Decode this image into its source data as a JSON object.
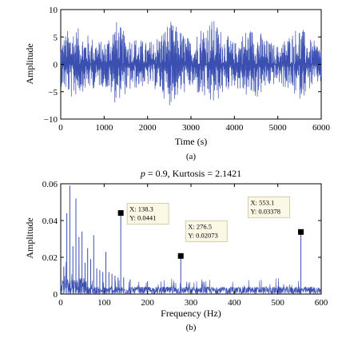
{
  "chart_data": [
    {
      "type": "line",
      "title": "",
      "xlabel": "Time (s)",
      "ylabel": "Amplitude",
      "caption": "(a)",
      "xlim": [
        0,
        6000
      ],
      "ylim": [
        -10,
        10
      ],
      "xticks": [
        "0",
        "1000",
        "2000",
        "3000",
        "4000",
        "5000",
        "6000"
      ],
      "yticks": [
        "10",
        "5",
        "0",
        "−5",
        "−10"
      ],
      "grid": false,
      "series": [
        {
          "color": "#3a4fb0",
          "x": [
            0,
            250,
            500,
            750,
            1000,
            1250,
            1500,
            1750,
            2000,
            2250,
            2500,
            2750,
            3000,
            3250,
            3500,
            3750,
            4000,
            4250,
            4500,
            4750,
            5000,
            5250,
            5500,
            5750,
            6000
          ],
          "upper_envelope": [
            4.5,
            7.5,
            6.0,
            5.0,
            4.0,
            8.5,
            5.5,
            5.0,
            4.0,
            5.5,
            8.0,
            6.5,
            4.5,
            7.5,
            8.5,
            6.0,
            4.0,
            6.5,
            7.0,
            4.5,
            3.5,
            5.5,
            7.5,
            4.5,
            4.0
          ],
          "lower_envelope": [
            -4.0,
            -6.5,
            -5.0,
            -4.5,
            -4.0,
            -7.0,
            -5.5,
            -4.5,
            -4.0,
            -5.0,
            -7.5,
            -6.0,
            -4.5,
            -6.5,
            -8.0,
            -5.5,
            -4.0,
            -6.0,
            -6.5,
            -4.5,
            -3.5,
            -5.0,
            -6.5,
            -4.5,
            -3.5
          ]
        }
      ]
    },
    {
      "type": "line",
      "title": "p = 0.9, Kurtosis = 2.1421",
      "xlabel": "Frequency (Hz)",
      "ylabel": "Amplitude",
      "caption": "(b)",
      "xlim": [
        0,
        600
      ],
      "ylim": [
        0,
        0.06
      ],
      "xticks": [
        "0",
        "100",
        "200",
        "300",
        "400",
        "500",
        "600"
      ],
      "yticks": [
        "0.06",
        "0.04",
        "0.02",
        "0"
      ],
      "grid": false,
      "series": [
        {
          "color": "#3a4fb0",
          "noise_floor": 0.004,
          "peaks": [
            {
              "x": 7,
              "y": 0.015
            },
            {
              "x": 14,
              "y": 0.044
            },
            {
              "x": 21,
              "y": 0.059
            },
            {
              "x": 28,
              "y": 0.026
            },
            {
              "x": 35,
              "y": 0.052
            },
            {
              "x": 42,
              "y": 0.031
            },
            {
              "x": 49,
              "y": 0.034
            },
            {
              "x": 56,
              "y": 0.017
            },
            {
              "x": 62,
              "y": 0.025
            },
            {
              "x": 69,
              "y": 0.019
            },
            {
              "x": 76,
              "y": 0.032
            },
            {
              "x": 83,
              "y": 0.014
            },
            {
              "x": 90,
              "y": 0.013
            },
            {
              "x": 97,
              "y": 0.012
            },
            {
              "x": 104,
              "y": 0.023
            },
            {
              "x": 111,
              "y": 0.012
            },
            {
              "x": 118,
              "y": 0.011
            },
            {
              "x": 125,
              "y": 0.01
            },
            {
              "x": 132,
              "y": 0.009
            },
            {
              "x": 138.3,
              "y": 0.0441
            },
            {
              "x": 145,
              "y": 0.009
            },
            {
              "x": 160,
              "y": 0.008
            },
            {
              "x": 200,
              "y": 0.007
            },
            {
              "x": 276.5,
              "y": 0.02073
            },
            {
              "x": 553.1,
              "y": 0.03378
            }
          ]
        }
      ],
      "annotations": [
        {
          "x": 138.3,
          "y": 0.0441,
          "line1": "X: 138.3",
          "line2": "Y: 0.0441"
        },
        {
          "x": 276.5,
          "y": 0.02073,
          "line1": "X: 276.5",
          "line2": "Y: 0.02073"
        },
        {
          "x": 553.1,
          "y": 0.03378,
          "line1": "X: 553.1",
          "line2": "Y: 0.03378"
        }
      ]
    }
  ]
}
